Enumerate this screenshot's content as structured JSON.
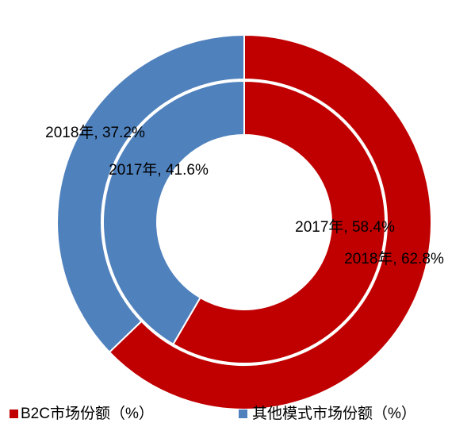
{
  "chart_data": {
    "type": "donut",
    "series": [
      {
        "name": "B2C市场份额（%）",
        "color": "#C00000"
      },
      {
        "name": "其他模式市场份额（%）",
        "color": "#4F81BD"
      }
    ],
    "rings": [
      {
        "values": [
          58.4,
          41.6
        ],
        "value_labels": [
          "2017年, 58.4%",
          "2017年, 41.6%"
        ]
      },
      {
        "values": [
          62.8,
          37.2
        ],
        "value_labels": [
          "2018年, 62.8%",
          "2018年, 37.2%"
        ]
      }
    ]
  }
}
